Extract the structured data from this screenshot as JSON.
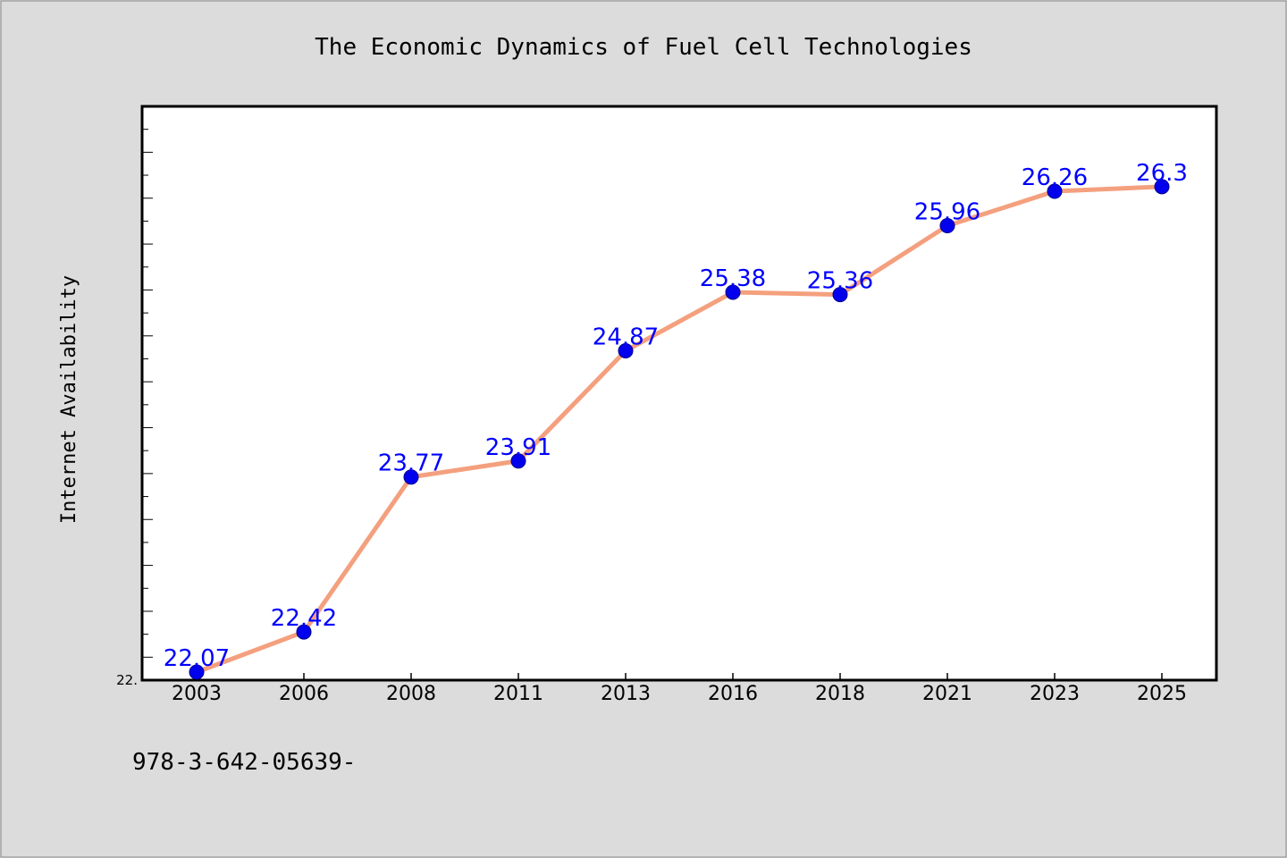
{
  "chart_data": {
    "type": "line",
    "title": "The Economic Dynamics of Fuel Cell Technologies",
    "ylabel": "Internet Availability",
    "xlabel": "",
    "categories": [
      "2003",
      "2006",
      "2008",
      "2011",
      "2013",
      "2016",
      "2018",
      "2021",
      "2023",
      "2025"
    ],
    "series": [
      {
        "values": [
          22.07,
          22.42,
          23.77,
          23.91,
          24.87,
          25.38,
          25.36,
          25.96,
          26.26,
          26.3
        ]
      }
    ],
    "data_labels": [
      "22.07",
      "22.42",
      "23.77",
      "23.91",
      "24.87",
      "25.38",
      "25.36",
      "25.96",
      "26.26",
      "26.3"
    ],
    "y_tick_label": "22.",
    "ylim": [
      22.0,
      27.0
    ],
    "grid": false,
    "line_color": "#f4a07e",
    "marker_color": "#0000ee",
    "label_color": "#0000ff"
  },
  "footer_text": "978-3-642-05639-"
}
